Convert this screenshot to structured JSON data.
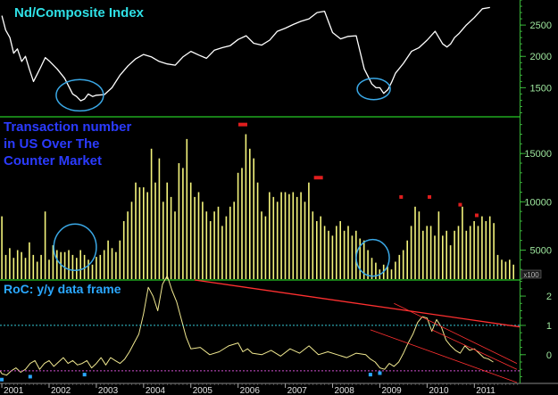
{
  "panels": {
    "top_title": "Nd/Composite Index",
    "mid_title_lines": [
      "Transaction number",
      "in US Over The",
      "Counter Market"
    ],
    "bottom_title": "RoC: y/y data frame",
    "mid_multiplier": "x100"
  },
  "colors": {
    "background": "#000000",
    "panel_separator": "#1fa81f",
    "right_axis": "#39b339",
    "top_title": "#2fe0e6",
    "mid_title": "#2b3bff",
    "bottom_title": "#2aa8ff",
    "index_line": "#ffffff",
    "bars": "#f4f47c",
    "peak_marks": "#e01e1e",
    "roc_line": "#f0e890",
    "circles": "#3aa8e6",
    "trend_lines": "#ff3030",
    "cyan_dash": "#35c9d6",
    "magenta_dash": "#d050d0",
    "low_marks": "#2aa8ff"
  },
  "chart_data": [
    {
      "type": "line",
      "title": "Nd/Composite Index",
      "ylim": [
        1050,
        2900
      ],
      "y_ticks": [
        1500,
        2000,
        2500
      ],
      "series": [
        {
          "name": "Nd/Composite Index",
          "x": [
            2001.0,
            2001.08,
            2001.17,
            2001.25,
            2001.33,
            2001.42,
            2001.5,
            2001.58,
            2001.67,
            2001.75,
            2001.83,
            2001.92,
            2002.0,
            2002.17,
            2002.33,
            2002.5,
            2002.58,
            2002.67,
            2002.75,
            2002.83,
            2002.92,
            2003.0,
            2003.17,
            2003.33,
            2003.5,
            2003.67,
            2003.83,
            2004.0,
            2004.17,
            2004.33,
            2004.5,
            2004.67,
            2004.83,
            2005.0,
            2005.17,
            2005.33,
            2005.5,
            2005.67,
            2005.83,
            2006.0,
            2006.17,
            2006.33,
            2006.5,
            2006.67,
            2006.83,
            2007.0,
            2007.17,
            2007.33,
            2007.5,
            2007.67,
            2007.83,
            2008.0,
            2008.17,
            2008.33,
            2008.5,
            2008.67,
            2008.83,
            2008.92,
            2009.0,
            2009.08,
            2009.17,
            2009.25,
            2009.33,
            2009.5,
            2009.67,
            2009.83,
            2010.0,
            2010.17,
            2010.33,
            2010.42,
            2010.5,
            2010.58,
            2010.67,
            2010.83,
            2011.0,
            2011.17,
            2011.33
          ],
          "values": [
            2650,
            2420,
            2300,
            2050,
            2120,
            1920,
            2000,
            1800,
            1600,
            1720,
            1840,
            1980,
            1930,
            1800,
            1650,
            1400,
            1360,
            1290,
            1320,
            1400,
            1360,
            1380,
            1390,
            1500,
            1700,
            1850,
            1960,
            2030,
            1990,
            1920,
            1880,
            1860,
            1990,
            2080,
            2020,
            1970,
            2100,
            2140,
            2170,
            2270,
            2330,
            2210,
            2180,
            2260,
            2400,
            2450,
            2510,
            2560,
            2600,
            2700,
            2720,
            2380,
            2280,
            2320,
            2330,
            1800,
            1560,
            1500,
            1500,
            1410,
            1470,
            1590,
            1730,
            1890,
            2080,
            2140,
            2260,
            2400,
            2200,
            2150,
            2200,
            2300,
            2360,
            2500,
            2620,
            2760,
            2780
          ]
        }
      ]
    },
    {
      "type": "bar",
      "title": "Transaction number in US Over The Counter Market",
      "ylim": [
        2000,
        18800
      ],
      "y_ticks": [
        5000,
        10000,
        15000
      ],
      "y_multiplier_label": "x100",
      "series": [
        {
          "name": "Transaction number",
          "x_start": 2001.0,
          "x_step": 0.0833,
          "values": [
            8500,
            4500,
            5200,
            4200,
            5000,
            4800,
            4200,
            5800,
            4500,
            3800,
            4500,
            9000,
            4000,
            5500,
            5000,
            4800,
            4800,
            5000,
            4500,
            4200,
            5000,
            4500,
            4000,
            3500,
            4300,
            4500,
            5000,
            6000,
            5200,
            4800,
            6000,
            8000,
            9000,
            10000,
            12000,
            11500,
            11500,
            11000,
            15500,
            12000,
            14500,
            10000,
            12000,
            10500,
            9000,
            14000,
            13500,
            16500,
            12000,
            10500,
            11000,
            10000,
            9000,
            8000,
            9000,
            9500,
            7500,
            8500,
            9500,
            10000,
            13000,
            13500,
            17000,
            15500,
            14500,
            12000,
            9000,
            8500,
            11000,
            10500,
            10000,
            11000,
            11000,
            10800,
            11000,
            10500,
            11000,
            10000,
            12000,
            9000,
            8000,
            8500,
            7500,
            7000,
            6500,
            7500,
            8000,
            7000,
            7500,
            6500,
            7000,
            6200,
            6000,
            5000,
            4200,
            3700,
            3000,
            3500,
            3300,
            3000,
            3800,
            4500,
            5000,
            6000,
            7500,
            9500,
            9000,
            7000,
            7500,
            7500,
            6500,
            9000,
            6500,
            7000,
            5500,
            7000,
            7500,
            9500,
            7000,
            7500,
            8000,
            7500,
            8500,
            8000,
            8500,
            7800,
            4500,
            4000,
            3800,
            4000,
            3500
          ]
        }
      ],
      "peak_marks": [
        {
          "x": 2006.1,
          "y": 18000
        },
        {
          "x": 2007.7,
          "y": 12500
        },
        {
          "x": 2009.45,
          "y": 10500
        },
        {
          "x": 2010.05,
          "y": 10500
        },
        {
          "x": 2010.7,
          "y": 9700
        },
        {
          "x": 2011.05,
          "y": 8600
        }
      ]
    },
    {
      "type": "line",
      "title": "RoC: y/y data frame",
      "ylim": [
        -0.95,
        2.55
      ],
      "y_ticks": [
        0,
        1,
        2
      ],
      "y_tick_labels": [
        "0",
        "1",
        "2"
      ],
      "reference_lines": [
        {
          "y": 1.0,
          "style": "dashed",
          "color": "cyan"
        },
        {
          "y": -0.55,
          "style": "dashed",
          "color": "magenta"
        }
      ],
      "series": [
        {
          "name": "RoC",
          "x": [
            2000.9,
            2001.0,
            2001.1,
            2001.2,
            2001.3,
            2001.4,
            2001.5,
            2001.6,
            2001.7,
            2001.8,
            2001.9,
            2002.0,
            2002.1,
            2002.2,
            2002.3,
            2002.4,
            2002.5,
            2002.6,
            2002.7,
            2002.8,
            2002.9,
            2003.0,
            2003.1,
            2003.2,
            2003.3,
            2003.4,
            2003.5,
            2003.6,
            2003.7,
            2003.8,
            2003.9,
            2004.0,
            2004.1,
            2004.2,
            2004.3,
            2004.4,
            2004.5,
            2004.6,
            2004.7,
            2004.8,
            2004.9,
            2005.0,
            2005.2,
            2005.4,
            2005.6,
            2005.8,
            2006.0,
            2006.1,
            2006.2,
            2006.3,
            2006.5,
            2006.7,
            2006.9,
            2007.1,
            2007.3,
            2007.5,
            2007.7,
            2007.9,
            2008.1,
            2008.3,
            2008.5,
            2008.7,
            2008.8,
            2008.9,
            2009.0,
            2009.1,
            2009.2,
            2009.3,
            2009.4,
            2009.5,
            2009.6,
            2009.7,
            2009.8,
            2009.9,
            2010.0,
            2010.1,
            2010.2,
            2010.3,
            2010.4,
            2010.5,
            2010.6,
            2010.7,
            2010.8,
            2010.9,
            2011.0,
            2011.1,
            2011.2,
            2011.3,
            2011.4
          ],
          "values": [
            -0.4,
            -0.65,
            -0.7,
            -0.55,
            -0.45,
            -0.6,
            -0.5,
            -0.3,
            -0.2,
            -0.5,
            -0.3,
            -0.2,
            -0.4,
            -0.25,
            -0.1,
            -0.3,
            -0.2,
            -0.35,
            -0.3,
            -0.2,
            -0.45,
            -0.3,
            -0.1,
            -0.35,
            -0.1,
            -0.2,
            -0.3,
            -0.15,
            0.1,
            0.4,
            0.7,
            1.4,
            2.3,
            2.0,
            1.5,
            2.4,
            2.7,
            2.2,
            1.8,
            1.2,
            0.6,
            0.2,
            0.25,
            0.0,
            0.1,
            0.3,
            0.4,
            0.1,
            0.2,
            0.05,
            0.0,
            0.15,
            -0.05,
            0.2,
            0.05,
            0.3,
            0.0,
            0.1,
            0.0,
            -0.1,
            0.05,
            0.0,
            -0.15,
            -0.25,
            -0.45,
            -0.5,
            -0.3,
            -0.4,
            -0.25,
            0.05,
            0.4,
            0.7,
            1.1,
            1.3,
            1.25,
            0.8,
            1.2,
            0.95,
            0.5,
            0.3,
            0.15,
            0.05,
            0.3,
            0.15,
            0.2,
            0.05,
            -0.1,
            -0.15,
            -0.25
          ]
        }
      ],
      "low_marks": [
        {
          "x": 2001.0,
          "y": -0.85
        },
        {
          "x": 2001.6,
          "y": -0.75
        },
        {
          "x": 2002.75,
          "y": -0.68
        },
        {
          "x": 2008.8,
          "y": -0.68
        },
        {
          "x": 2009.0,
          "y": -0.63
        }
      ]
    }
  ],
  "x_axis": {
    "tick_labels": [
      "2001",
      "2002",
      "2003",
      "2004",
      "2005",
      "2006",
      "2007",
      "2008",
      "2009",
      "2010",
      "2011"
    ]
  },
  "annotations": {
    "circles": [
      {
        "panel": 0,
        "x": 2002.65,
        "y": 1380,
        "rx_years": 0.5,
        "ry_units": 250
      },
      {
        "panel": 0,
        "x": 2008.87,
        "y": 1480,
        "rx_years": 0.35,
        "ry_units": 170
      },
      {
        "panel": 1,
        "x": 2002.55,
        "y": 5300,
        "rx_years": 0.45,
        "ry_units": 2400
      },
      {
        "panel": 1,
        "x": 2008.85,
        "y": 4200,
        "rx_years": 0.35,
        "ry_units": 1900
      }
    ],
    "trend_lines": [
      {
        "panel": 2,
        "x1": 2004.0,
        "y1": 2.8,
        "x2": 2012.0,
        "y2": 0.95
      },
      {
        "panel": 2,
        "x1": 2009.3,
        "y1": 1.75,
        "x2": 2011.9,
        "y2": -0.3
      },
      {
        "panel": 2,
        "x1": 2008.8,
        "y1": 0.85,
        "x2": 2011.9,
        "y2": -0.95
      },
      {
        "panel": 2,
        "x1": 2010.1,
        "y1": 0.85,
        "x2": 2011.9,
        "y2": -0.5
      }
    ]
  }
}
